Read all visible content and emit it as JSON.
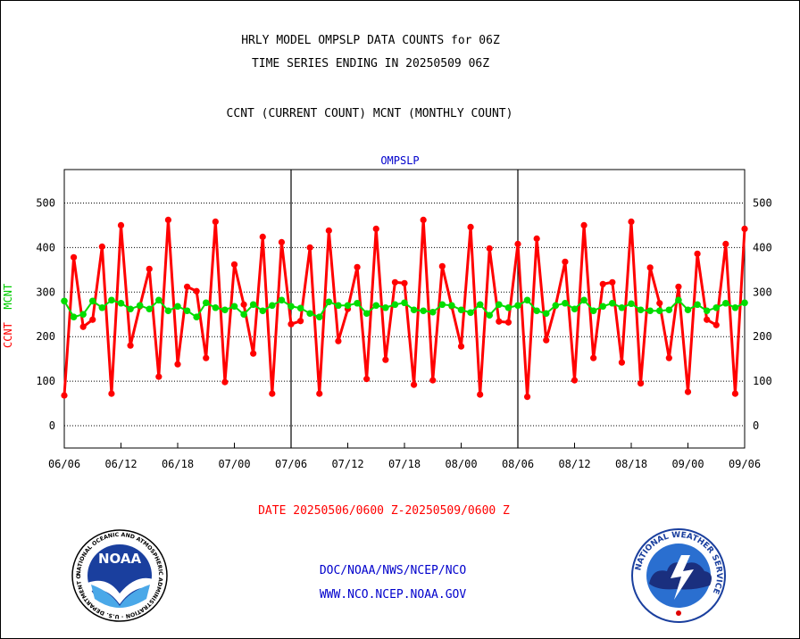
{
  "header": {
    "line1": "HRLY MODEL OMPSLP DATA COUNTS for 06Z",
    "line2": "TIME SERIES ENDING IN 20250509 06Z",
    "line3": "CCNT (CURRENT COUNT) MCNT (MONTHLY COUNT)"
  },
  "footer": {
    "date_range": "DATE 20250506/0600 Z-20250509/0600 Z",
    "credit1": "DOC/NOAA/NWS/NCEP/NCO",
    "credit2": "WWW.NCO.NCEP.NOAA.GOV"
  },
  "logos": {
    "noaa_text": "NOAA",
    "noaa_ring": "NATIONAL OCEANIC AND ATMOSPHERIC ADMINISTRATION · U.S. DEPARTMENT OF COMMERCE ·",
    "nws_ring": "NATIONAL WEATHER SERVICE"
  },
  "colors": {
    "ccnt": "#ff0000",
    "mcnt": "#00dd00",
    "series_label": "#0000cc",
    "grid": "#000000"
  },
  "chart_data": {
    "type": "line",
    "series_label": "OMPSLP",
    "ylabel_ccnt": "CCNT",
    "ylabel_mcnt": "MCNT",
    "ylim": [
      -50,
      575
    ],
    "yticks": [
      0,
      100,
      200,
      300,
      400,
      500
    ],
    "xticks": [
      "06/06",
      "06/12",
      "06/18",
      "07/00",
      "07/06",
      "07/12",
      "07/18",
      "08/00",
      "08/06",
      "08/12",
      "08/18",
      "09/00",
      "09/06"
    ],
    "x_start_index": 0,
    "x_end_index": 72,
    "grid": true,
    "series": [
      {
        "name": "CCNT",
        "color": "#ff0000",
        "values": [
          68,
          378,
          222,
          238,
          402,
          72,
          450,
          180,
          268,
          352,
          110,
          462,
          138,
          312,
          302,
          152,
          458,
          98,
          362,
          272,
          162,
          424,
          72,
          412,
          228,
          235,
          400,
          72,
          438,
          190,
          262,
          356,
          105,
          442,
          148,
          322,
          320,
          92,
          462,
          102,
          358,
          268,
          178,
          446,
          70,
          398,
          234,
          232,
          408,
          65,
          420,
          192,
          270,
          368,
          102,
          450,
          152,
          318,
          322,
          142,
          458,
          95,
          355,
          275,
          152,
          312,
          76,
          386,
          238,
          226,
          408,
          72,
          442
        ]
      },
      {
        "name": "MCNT",
        "color": "#00dd00",
        "values": [
          280,
          244,
          250,
          280,
          265,
          282,
          275,
          262,
          270,
          262,
          282,
          258,
          268,
          258,
          244,
          276,
          265,
          260,
          268,
          250,
          272,
          258,
          270,
          282,
          268,
          264,
          252,
          244,
          278,
          270,
          270,
          275,
          252,
          270,
          265,
          272,
          276,
          260,
          258,
          255,
          272,
          270,
          260,
          254,
          272,
          248,
          272,
          265,
          270,
          282,
          258,
          252,
          270,
          275,
          262,
          282,
          258,
          268,
          275,
          265,
          274,
          260,
          258,
          258,
          260,
          282,
          260,
          272,
          258,
          265,
          275,
          265,
          276
        ]
      }
    ]
  }
}
